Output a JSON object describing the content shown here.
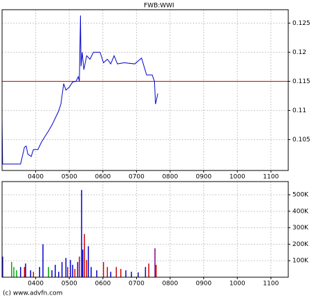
{
  "chart_data": [
    {
      "type": "line",
      "title": "FWB:WWI",
      "color": "#0000cc",
      "grid": true,
      "x": [
        180,
        181,
        213,
        220,
        223,
        226,
        232,
        236,
        244,
        250,
        257,
        263,
        269,
        275,
        281,
        285,
        290,
        294,
        300,
        306,
        312,
        316,
        318,
        320,
        321,
        323,
        326,
        331,
        337,
        343,
        355,
        361,
        368,
        374,
        380,
        386,
        398,
        417,
        429,
        438,
        448,
        452,
        454,
        458
      ],
      "values": [
        0.1087,
        0.1008,
        0.1008,
        0.1037,
        0.1039,
        0.1025,
        0.1021,
        0.1033,
        0.1033,
        0.1045,
        0.1056,
        0.1065,
        0.1075,
        0.1087,
        0.1099,
        0.1111,
        0.1146,
        0.1135,
        0.114,
        0.1149,
        0.115,
        0.1158,
        0.115,
        0.1263,
        0.1176,
        0.12,
        0.117,
        0.1194,
        0.1188,
        0.12,
        0.12,
        0.1182,
        0.1188,
        0.118,
        0.1194,
        0.118,
        0.1182,
        0.118,
        0.119,
        0.1161,
        0.1161,
        0.115,
        0.1111,
        0.1129
      ],
      "hline": {
        "value": 0.115,
        "color": "#cc0000"
      },
      "xlim": [
        180,
        691
      ],
      "ylim": [
        0.0997,
        0.1273
      ],
      "xticks": [
        {
          "value": 240,
          "label": "0400"
        },
        {
          "value": 300,
          "label": "0500"
        },
        {
          "value": 360,
          "label": "0600"
        },
        {
          "value": 420,
          "label": "0700"
        },
        {
          "value": 480,
          "label": "0800"
        },
        {
          "value": 540,
          "label": "0900"
        },
        {
          "value": 600,
          "label": "1000"
        },
        {
          "value": 660,
          "label": "1100"
        }
      ],
      "yticks": [
        0.105,
        0.11,
        0.115,
        0.12,
        0.125
      ]
    },
    {
      "type": "bar",
      "grid": true,
      "x": [
        181,
        197,
        201,
        206,
        213,
        220,
        222,
        231,
        236,
        247,
        253,
        263,
        269,
        275,
        281,
        287,
        294,
        297,
        302,
        306,
        310,
        315,
        318,
        322,
        324,
        327,
        331,
        334,
        339,
        349,
        361,
        368,
        374,
        384,
        392,
        401,
        411,
        423,
        436,
        442,
        453,
        455
      ],
      "values": [
        125000,
        92000,
        62000,
        42000,
        62000,
        62000,
        83000,
        42000,
        33000,
        62000,
        200000,
        62000,
        42000,
        75000,
        33000,
        92000,
        117000,
        62000,
        104000,
        75000,
        50000,
        92000,
        125000,
        529000,
        167000,
        262000,
        104000,
        188000,
        62000,
        42000,
        92000,
        62000,
        33000,
        62000,
        50000,
        42000,
        33000,
        29000,
        62000,
        83000,
        175000,
        75000
      ],
      "colors": [
        "#0000cc",
        "#00aa00",
        "#00aa00",
        "#00aa00",
        "#0000cc",
        "#cc0000",
        "#0000cc",
        "#0000cc",
        "#cc0000",
        "#0000cc",
        "#0000cc",
        "#00aa00",
        "#0000cc",
        "#0000cc",
        "#0000cc",
        "#0000cc",
        "#0000cc",
        "#cc0000",
        "#0000cc",
        "#0000cc",
        "#cc0000",
        "#0000cc",
        "#cc0000",
        "#0000cc",
        "#0000cc",
        "#cc0000",
        "#cc0000",
        "#0000cc",
        "#0000cc",
        "#0000cc",
        "#cc0000",
        "#cc0000",
        "#0000cc",
        "#cc0000",
        "#cc0000",
        "#0000cc",
        "#0000cc",
        "#0000cc",
        "#0000cc",
        "#cc0000",
        "#800080",
        "#cc0000"
      ],
      "xlim": [
        180,
        691
      ],
      "ylim": [
        0,
        580000
      ],
      "xticks": [
        {
          "value": 240,
          "label": "0400"
        },
        {
          "value": 300,
          "label": "0500"
        },
        {
          "value": 360,
          "label": "0600"
        },
        {
          "value": 420,
          "label": "0700"
        },
        {
          "value": 480,
          "label": "0800"
        },
        {
          "value": 540,
          "label": "0900"
        },
        {
          "value": 600,
          "label": "1000"
        },
        {
          "value": 660,
          "label": "1100"
        }
      ],
      "yticks": [
        {
          "value": 100000,
          "label": "100K"
        },
        {
          "value": 200000,
          "label": "200K"
        },
        {
          "value": 300000,
          "label": "300K"
        },
        {
          "value": 400000,
          "label": "400K"
        },
        {
          "value": 500000,
          "label": "500K"
        }
      ]
    }
  ],
  "footer": "(c) www.advfn.com"
}
